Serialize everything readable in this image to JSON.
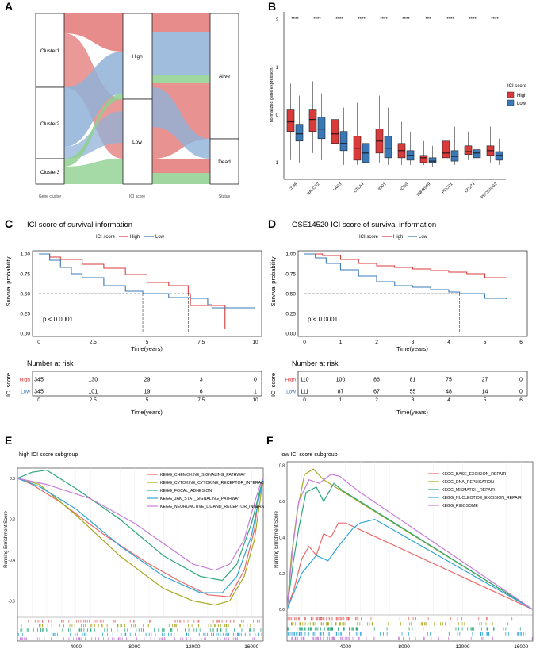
{
  "colors": {
    "red": "#d93a3a",
    "blue": "#3a78b8",
    "green": "#4aa84a",
    "gsea_e": [
      "#e86a6a",
      "#a8a820",
      "#2fa77a",
      "#31a6d6",
      "#c77ed8"
    ],
    "gsea_f": [
      "#e86a6a",
      "#a8a820",
      "#2fa77a",
      "#31a6d6",
      "#c77ed8"
    ]
  },
  "panels": {
    "A": {
      "letter": "A",
      "clusters": [
        "Cluster1",
        "Cluster2",
        "Cluster3"
      ],
      "ici": [
        "High",
        "Low"
      ],
      "status": [
        "Alive",
        "Dead"
      ],
      "axis_labels": [
        "Gene cluster",
        "ICI score",
        "Status"
      ]
    },
    "B": {
      "letter": "B",
      "ylabel": "normalized gene expression",
      "legend_title": "ICI score",
      "legend": [
        "High",
        "Low"
      ],
      "yticks": [
        "2",
        "1",
        "0",
        "-1"
      ],
      "sig": [
        "****",
        "****",
        "****",
        "****",
        "****",
        "****",
        "***",
        "****",
        "****",
        "****"
      ]
    },
    "C": {
      "letter": "C",
      "title": "ICI score of survival information"
    },
    "D": {
      "letter": "D",
      "title": "GSE14520 ICI score of survival information"
    },
    "E": {
      "letter": "E",
      "title": "high ICI score subgroup",
      "ylabel": "Running Enrichment Score"
    },
    "F": {
      "letter": "F",
      "title": "low ICI score subgroup",
      "ylabel": "Running Enrichment Score"
    }
  },
  "chart_data": [
    {
      "id": "B",
      "type": "box",
      "title": "",
      "xlabel": "",
      "ylabel": "normalized gene expression",
      "ylim": [
        -1.3,
        2.2
      ],
      "categories": [
        "CD86",
        "HAVCR2",
        "LAG3",
        "CTLA4",
        "IDO1",
        "ICOS",
        "TNFRSF9",
        "PDCD1",
        "CD274",
        "PDCD1LG2"
      ],
      "series": [
        {
          "name": "High",
          "boxes": [
            [
              -0.9,
              -0.3,
              -0.1,
              0.15,
              0.7
            ],
            [
              -0.75,
              -0.3,
              -0.05,
              0.15,
              0.75
            ],
            [
              -0.95,
              -0.55,
              -0.35,
              -0.05,
              0.55
            ],
            [
              -1.0,
              -0.9,
              -0.65,
              -0.4,
              0.3
            ],
            [
              -0.95,
              -0.75,
              -0.5,
              -0.25,
              0.45
            ],
            [
              -1.0,
              -0.85,
              -0.7,
              -0.55,
              -0.1
            ],
            [
              -1.0,
              -0.95,
              -0.85,
              -0.8,
              -0.5
            ],
            [
              -1.0,
              -0.85,
              -0.75,
              -0.5,
              0.15
            ],
            [
              -0.9,
              -0.78,
              -0.72,
              -0.6,
              -0.3
            ],
            [
              -0.95,
              -0.8,
              -0.7,
              -0.6,
              -0.2
            ]
          ]
        },
        {
          "name": "Low",
          "boxes": [
            [
              -0.95,
              -0.5,
              -0.35,
              -0.15,
              0.45
            ],
            [
              -0.9,
              -0.45,
              -0.25,
              0.0,
              0.5
            ],
            [
              -1.0,
              -0.7,
              -0.55,
              -0.3,
              0.2
            ],
            [
              -1.05,
              -0.95,
              -0.75,
              -0.55,
              0.1
            ],
            [
              -1.0,
              -0.85,
              -0.65,
              -0.4,
              0.2
            ],
            [
              -1.0,
              -0.9,
              -0.8,
              -0.7,
              -0.3
            ],
            [
              -1.05,
              -0.95,
              -0.92,
              -0.85,
              -0.6
            ],
            [
              -1.0,
              -0.92,
              -0.82,
              -0.7,
              -0.2
            ],
            [
              -0.95,
              -0.85,
              -0.75,
              -0.68,
              -0.4
            ],
            [
              -1.0,
              -0.9,
              -0.8,
              -0.72,
              -0.45
            ]
          ]
        }
      ]
    },
    {
      "id": "C",
      "type": "line",
      "title": "ICI score of survival information",
      "legend_title": "ICI score",
      "xlabel": "Time(years)",
      "ylabel": "Survival probability",
      "xlim": [
        0,
        10
      ],
      "ylim": [
        0,
        1
      ],
      "xticks": [
        0,
        2.5,
        5,
        7.5,
        10
      ],
      "yticks": [
        0,
        0.25,
        0.5,
        0.75,
        1.0
      ],
      "pvalue": "p < 0.0001",
      "median_lines": [
        4.8,
        6.9
      ],
      "series": [
        {
          "name": "High",
          "x": [
            0,
            0.5,
            1,
            2,
            3,
            4,
            5,
            6,
            6.9,
            7,
            8.5,
            8.6
          ],
          "y": [
            1,
            0.96,
            0.93,
            0.87,
            0.82,
            0.74,
            0.64,
            0.6,
            0.5,
            0.35,
            0.35,
            0.05
          ]
        },
        {
          "name": "Low",
          "x": [
            0,
            0.5,
            1,
            1.5,
            2,
            3,
            4,
            4.8,
            6,
            7,
            7.8,
            8,
            10
          ],
          "y": [
            1,
            0.92,
            0.83,
            0.75,
            0.7,
            0.6,
            0.53,
            0.5,
            0.45,
            0.44,
            0.36,
            0.32,
            0.32
          ]
        }
      ],
      "risk_table": {
        "title": "Number at risk",
        "ylabel": "ICI score",
        "xlabel": "Time(years)",
        "times": [
          "0",
          "2.5",
          "5",
          "7.5",
          "10"
        ],
        "rows": [
          {
            "name": "High",
            "values": [
              "345",
              "130",
              "29",
              "3",
              "0"
            ]
          },
          {
            "name": "Low",
            "values": [
              "345",
              "101",
              "19",
              "6",
              "1"
            ]
          }
        ]
      }
    },
    {
      "id": "D",
      "type": "line",
      "title": "GSE14520 ICI score of survival information",
      "legend_title": "ICI score",
      "xlabel": "Time(years)",
      "ylabel": "Survival probability",
      "xlim": [
        0,
        6
      ],
      "ylim": [
        0,
        1
      ],
      "xticks": [
        0,
        1,
        2,
        3,
        4,
        5,
        6
      ],
      "yticks": [
        0,
        0.25,
        0.5,
        0.75,
        1.0
      ],
      "pvalue": "p < 0.0001",
      "median_lines": [
        4.3
      ],
      "series": [
        {
          "name": "High",
          "x": [
            0,
            0.5,
            1,
            1.5,
            2,
            2.5,
            3,
            3.5,
            4,
            4.5,
            5,
            5.6
          ],
          "y": [
            1,
            0.98,
            0.93,
            0.88,
            0.85,
            0.83,
            0.81,
            0.79,
            0.77,
            0.75,
            0.7,
            0.7
          ]
        },
        {
          "name": "Low",
          "x": [
            0,
            0.3,
            0.6,
            1,
            1.5,
            2,
            2.5,
            3,
            3.5,
            4,
            4.3,
            5,
            5.6
          ],
          "y": [
            1,
            0.95,
            0.88,
            0.8,
            0.72,
            0.65,
            0.6,
            0.58,
            0.55,
            0.52,
            0.5,
            0.44,
            0.43
          ]
        }
      ],
      "risk_table": {
        "title": "Number at risk",
        "ylabel": "ICI score",
        "xlabel": "Time(years)",
        "times": [
          "0",
          "1",
          "2",
          "3",
          "4",
          "5",
          "6"
        ],
        "rows": [
          {
            "name": "High",
            "values": [
              "110",
              "100",
              "86",
              "81",
              "75",
              "27",
              "0"
            ]
          },
          {
            "name": "Low",
            "values": [
              "111",
              "87",
              "67",
              "55",
              "48",
              "14",
              "0"
            ]
          }
        ]
      }
    },
    {
      "id": "E",
      "type": "line",
      "title": "high ICI score subgroup",
      "xlabel": "",
      "ylabel": "Running Enrichment Score",
      "xlim": [
        0,
        16800
      ],
      "ylim": [
        -0.68,
        0.05
      ],
      "xticks": [
        4000,
        8000,
        12000,
        16000
      ],
      "yticks": [
        0.0,
        -0.2,
        -0.4,
        -0.6
      ],
      "series": [
        {
          "name": "KEGG_CHEMOKINE_SIGNALING_PATHWAY",
          "x": [
            0,
            1000,
            3000,
            6000,
            9000,
            11000,
            13000,
            14500,
            15500,
            16200,
            16500,
            16800
          ],
          "y": [
            0.0,
            -0.03,
            -0.12,
            -0.28,
            -0.42,
            -0.5,
            -0.57,
            -0.58,
            -0.45,
            -0.25,
            -0.08,
            0.0
          ]
        },
        {
          "name": "KEGG_CYTOKINE_CYTOKINE_RECEPTOR_INTERACTION",
          "x": [
            0,
            1500,
            4000,
            7000,
            10000,
            12000,
            13500,
            14500,
            15500,
            16200,
            16600,
            16800
          ],
          "y": [
            0.0,
            -0.03,
            -0.18,
            -0.38,
            -0.54,
            -0.6,
            -0.62,
            -0.6,
            -0.48,
            -0.3,
            -0.1,
            0.0
          ]
        },
        {
          "name": "KEGG_FOCAL_ADHESION",
          "x": [
            0,
            1000,
            2000,
            4000,
            7000,
            10000,
            12500,
            14000,
            15000,
            16000,
            16500,
            16800
          ],
          "y": [
            0.0,
            0.03,
            0.04,
            -0.05,
            -0.2,
            -0.38,
            -0.48,
            -0.5,
            -0.42,
            -0.22,
            -0.08,
            0.0
          ]
        },
        {
          "name": "KEGG_JAK_STAT_SIGNALING_PATHWAY",
          "x": [
            0,
            1500,
            4000,
            7000,
            10000,
            12500,
            14000,
            15000,
            16000,
            16500,
            16800
          ],
          "y": [
            0.0,
            -0.04,
            -0.15,
            -0.33,
            -0.48,
            -0.56,
            -0.56,
            -0.48,
            -0.28,
            -0.1,
            0.0
          ]
        },
        {
          "name": "KEGG_NEUROACTIVE_LIGAND_RECEPTOR_INTERACTION",
          "x": [
            0,
            2000,
            5000,
            8000,
            10000,
            12000,
            13500,
            14500,
            15500,
            16200,
            16600,
            16800
          ],
          "y": [
            0.0,
            -0.03,
            -0.1,
            -0.22,
            -0.32,
            -0.42,
            -0.45,
            -0.42,
            -0.3,
            -0.12,
            -0.03,
            0.0
          ]
        }
      ],
      "legend": [
        "KEGG_CHEMOKINE_SIGNALING_PATHWAY",
        "KEGG_CYTOKINE_CYTOKINE_RECEPTOR_INTERAC",
        "KEGG_FOCAL_ADHESION",
        "KEGG_JAK_STAT_SIGNALING_PATHWAY",
        "KEGG_NEUROACTIVE_LIGAND_RECEPTOR_INTERA"
      ]
    },
    {
      "id": "F",
      "type": "line",
      "title": "low ICI score subgroup",
      "xlabel": "",
      "ylabel": "Running Enrichment Score",
      "xlim": [
        0,
        16800
      ],
      "ylim": [
        -0.03,
        0.82
      ],
      "xticks": [
        4000,
        8000,
        12000,
        16000
      ],
      "yticks": [
        0.0,
        0.2,
        0.4,
        0.6,
        0.8
      ],
      "series": [
        {
          "name": "KEGG_BASE_EXCISION_REPAIR",
          "x": [
            0,
            500,
            1000,
            1500,
            2000,
            2500,
            3000,
            3500,
            4000,
            16800
          ],
          "y": [
            0.0,
            0.12,
            0.28,
            0.35,
            0.3,
            0.42,
            0.4,
            0.48,
            0.48,
            0.0
          ]
        },
        {
          "name": "KEGG_DNA_REPLICATION",
          "x": [
            0,
            300,
            700,
            1200,
            1800,
            2500,
            16800
          ],
          "y": [
            0.0,
            0.3,
            0.55,
            0.75,
            0.78,
            0.72,
            0.0
          ]
        },
        {
          "name": "KEGG_MISMATCH_REPAIR",
          "x": [
            0,
            400,
            800,
            1300,
            2000,
            2500,
            3200,
            3800,
            16800
          ],
          "y": [
            0.0,
            0.25,
            0.45,
            0.65,
            0.68,
            0.6,
            0.7,
            0.66,
            0.0
          ]
        },
        {
          "name": "KEGG_NUCLEOTIDE_EXCISION_REPAIR",
          "x": [
            0,
            500,
            1000,
            1500,
            2000,
            2800,
            3500,
            4500,
            5000,
            6000,
            16800
          ],
          "y": [
            0.0,
            0.1,
            0.2,
            0.25,
            0.3,
            0.27,
            0.35,
            0.45,
            0.48,
            0.5,
            0.0
          ]
        },
        {
          "name": "KEGG_RIBOSOME",
          "x": [
            0,
            400,
            800,
            1500,
            2200,
            3000,
            3600,
            4200,
            5000,
            16800
          ],
          "y": [
            0.0,
            0.35,
            0.6,
            0.72,
            0.7,
            0.75,
            0.74,
            0.7,
            0.65,
            0.0
          ]
        }
      ],
      "legend": [
        "KEGG_BASE_EXCISION_REPAIR",
        "KEGG_DNA_REPLICATION",
        "KEGG_MISMATCH_REPAIR",
        "KEGG_NUCLEOTIDE_EXCISION_REPAIR",
        "KEGG_RIBOSOME"
      ]
    }
  ]
}
